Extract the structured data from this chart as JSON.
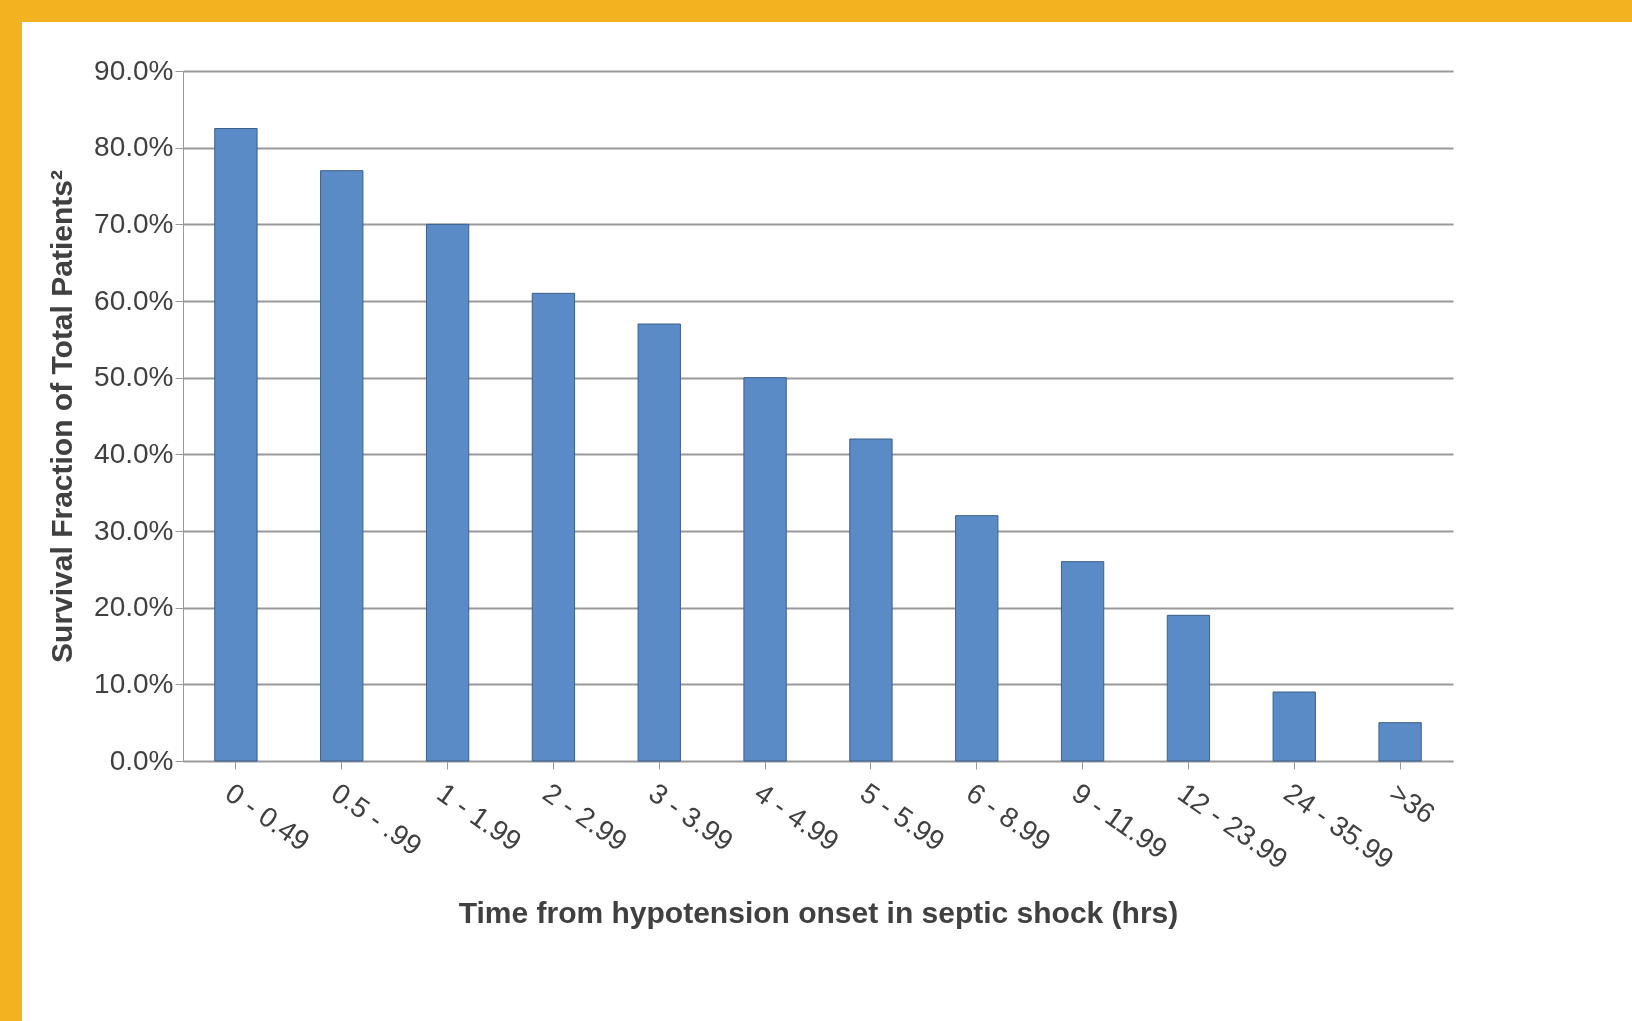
{
  "chart_data": {
    "type": "bar",
    "xlabel": "Time from hypotension onset in septic shock (hrs)",
    "ylabel": "Survival Fraction of Total Patients²",
    "categories": [
      "0 - 0.49",
      "0.5 - .99",
      "1 - 1.99",
      "2 - 2.99",
      "3 - 3.99",
      "4 - 4.99",
      "5 - 5.99",
      "6 - 8.99",
      "9 - 11.99",
      "12 - 23.99",
      "24 - 35.99",
      ">36"
    ],
    "values": [
      82.5,
      77,
      70,
      61,
      57,
      50,
      42,
      32,
      26,
      19,
      9,
      5
    ],
    "color": "#5b8bc7",
    "ylim": [
      0,
      90
    ],
    "yticks": [
      {
        "value": 0,
        "label": "0.0%"
      },
      {
        "value": 10,
        "label": "10.0%"
      },
      {
        "value": 20,
        "label": "20.0%"
      },
      {
        "value": 30,
        "label": "30.0%"
      },
      {
        "value": 40,
        "label": "40.0%"
      },
      {
        "value": 50,
        "label": "50.0%"
      },
      {
        "value": 60,
        "label": "60.0%"
      },
      {
        "value": 70,
        "label": "70.0%"
      },
      {
        "value": 80,
        "label": "80.0%"
      },
      {
        "value": 90,
        "label": "90.0%"
      }
    ],
    "grid": "y"
  }
}
